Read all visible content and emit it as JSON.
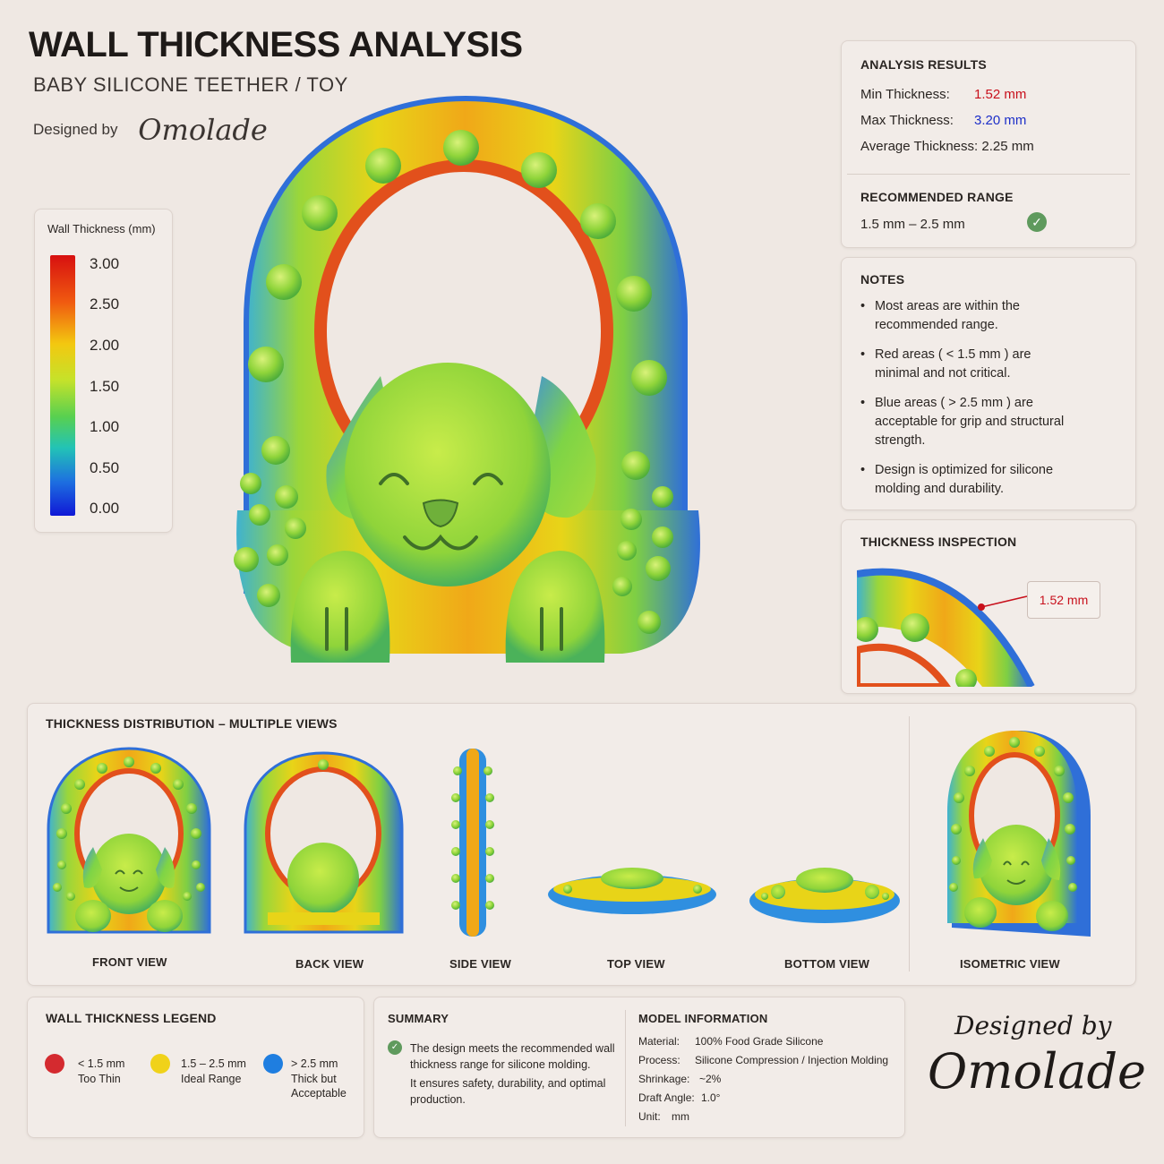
{
  "header": {
    "title": "WALL THICKNESS ANALYSIS",
    "subtitle": "BABY SILICONE TEETHER / TOY",
    "designed_by": "Designed by",
    "designer": "Omolade"
  },
  "scale": {
    "label": "Wall Thickness (mm)",
    "ticks": [
      "3.00",
      "2.50",
      "2.00",
      "1.50",
      "1.00",
      "0.50",
      "0.00"
    ]
  },
  "results": {
    "title": "ANALYSIS RESULTS",
    "min_label": "Min Thickness:",
    "min_value": "1.52 mm",
    "max_label": "Max Thickness:",
    "max_value": "3.20 mm",
    "avg_label": "Average Thickness:",
    "avg_value": "2.25 mm",
    "range_title": "RECOMMENDED RANGE",
    "range_value": "1.5 mm – 2.5 mm",
    "range_ok": "✓"
  },
  "notes": {
    "title": "NOTES",
    "items": [
      "Most areas are within the recommended range.",
      "Red areas ( < 1.5 mm ) are minimal and not critical.",
      "Blue areas ( > 2.5 mm ) are acceptable for grip and structural strength.",
      "Design is optimized for silicone molding and durability."
    ]
  },
  "inspection": {
    "title": "THICKNESS INSPECTION",
    "callout": "1.52 mm"
  },
  "views": {
    "title": "THICKNESS DISTRIBUTION – MULTIPLE VIEWS",
    "labels": [
      "FRONT VIEW",
      "BACK VIEW",
      "SIDE VIEW",
      "TOP VIEW",
      "BOTTOM VIEW",
      "ISOMETRIC VIEW"
    ]
  },
  "legend": {
    "title": "WALL THICKNESS LEGEND",
    "items": [
      {
        "range": "< 1.5 mm",
        "desc": "Too Thin",
        "desc2": "",
        "color": "#d42a2f"
      },
      {
        "range": "1.5 – 2.5 mm",
        "desc": "Ideal Range",
        "desc2": "",
        "color": "#f0d21a"
      },
      {
        "range": "> 2.5 mm",
        "desc": "Thick but",
        "desc2": "Acceptable",
        "color": "#1f7ee0"
      }
    ]
  },
  "summary": {
    "title": "SUMMARY",
    "line1": "The design meets the recommended wall thickness range for silicone molding.",
    "line2": "It ensures safety, durability, and optimal production."
  },
  "model": {
    "title": "MODEL INFORMATION",
    "rows": [
      {
        "k": "Material:",
        "v": "100% Food Grade Silicone"
      },
      {
        "k": "Process:",
        "v": "Silicone Compression / Injection Molding"
      },
      {
        "k": "Shrinkage:",
        "v": "~2%"
      },
      {
        "k": "Draft Angle:",
        "v": "1.0°"
      },
      {
        "k": "Unit:",
        "v": "mm"
      }
    ]
  },
  "signature": {
    "line1": "Designed by",
    "line2": "Omolade"
  },
  "colors": {
    "accent_red": "#c8101c",
    "accent_blue": "#1d2fc8",
    "check_green": "#5f9a5d",
    "background": "#efe8e3"
  }
}
